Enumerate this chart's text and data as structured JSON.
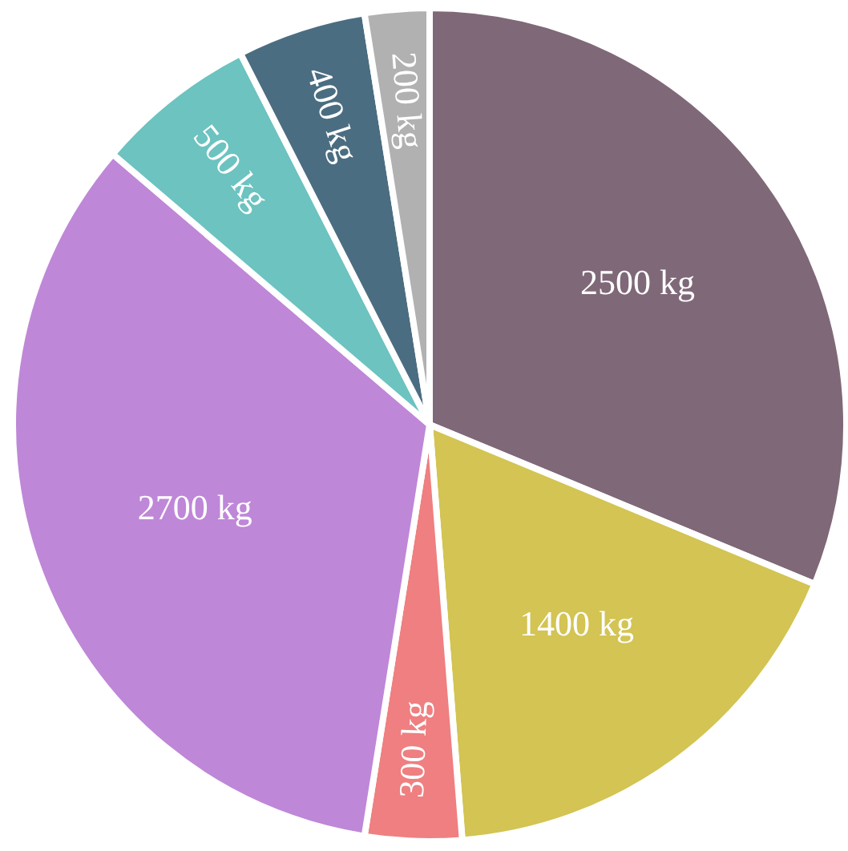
{
  "chart_data": {
    "type": "pie",
    "categories": [
      "2500 kg",
      "1400 kg",
      "300 kg",
      "2700 kg",
      "500 kg",
      "400 kg",
      "200 kg"
    ],
    "values": [
      2500,
      1400,
      300,
      2700,
      500,
      400,
      200
    ],
    "colors": [
      "#7f6878",
      "#d3c453",
      "#ef7f80",
      "#bf87d8",
      "#6cc3c0",
      "#4b6d81",
      "#b1b1b1"
    ]
  }
}
